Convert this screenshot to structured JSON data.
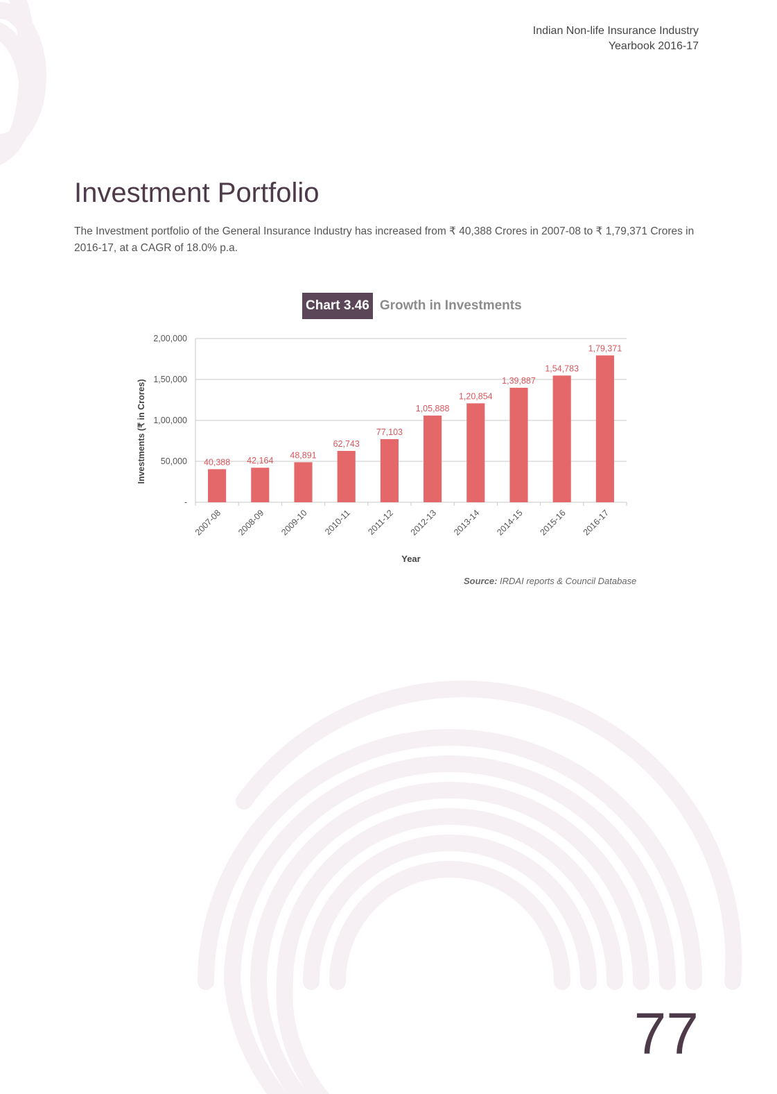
{
  "header": {
    "line1": "Indian Non-life Insurance Industry",
    "line2": "Yearbook 2016-17"
  },
  "section": {
    "title": "Investment Portfolio",
    "intro": "The Investment portfolio of the General Insurance Industry has increased from ₹ 40,388 Crores in 2007-08 to ₹ 1,79,371 Crores in 2016-17, at a CAGR of 18.0% p.a."
  },
  "chart_heading": {
    "number": "Chart 3.46",
    "title": "Growth in Investments"
  },
  "chart_data": {
    "type": "bar",
    "categories": [
      "2007-08",
      "2008-09",
      "2009-10",
      "2010-11",
      "2011-12",
      "2012-13",
      "2013-14",
      "2014-15",
      "2015-16",
      "2016-17"
    ],
    "values": [
      40388,
      42164,
      48891,
      62743,
      77103,
      105888,
      120854,
      139887,
      154783,
      179371
    ],
    "value_labels": [
      "40,388",
      "42,164",
      "48,891",
      "62,743",
      "77,103",
      "1,05,888",
      "1,20,854",
      "1,39,887",
      "1,54,783",
      "1,79,371"
    ],
    "yticks": [
      0,
      50000,
      100000,
      150000,
      200000
    ],
    "ytick_labels": [
      "-",
      "50,000",
      "1,00,000",
      "1,50,000",
      "2,00,000"
    ],
    "ylim": [
      0,
      200000
    ],
    "xlabel": "Year",
    "ylabel": "Investments (₹ in Crores)",
    "grid": true,
    "bar_color": "#e4676a",
    "label_color": "#d9575c"
  },
  "source": {
    "label": "Source:",
    "text": "IRDAI reports & Council Database"
  },
  "page_number": "77",
  "colors": {
    "accent": "#5a4656",
    "decoration": "#f6eff3"
  }
}
